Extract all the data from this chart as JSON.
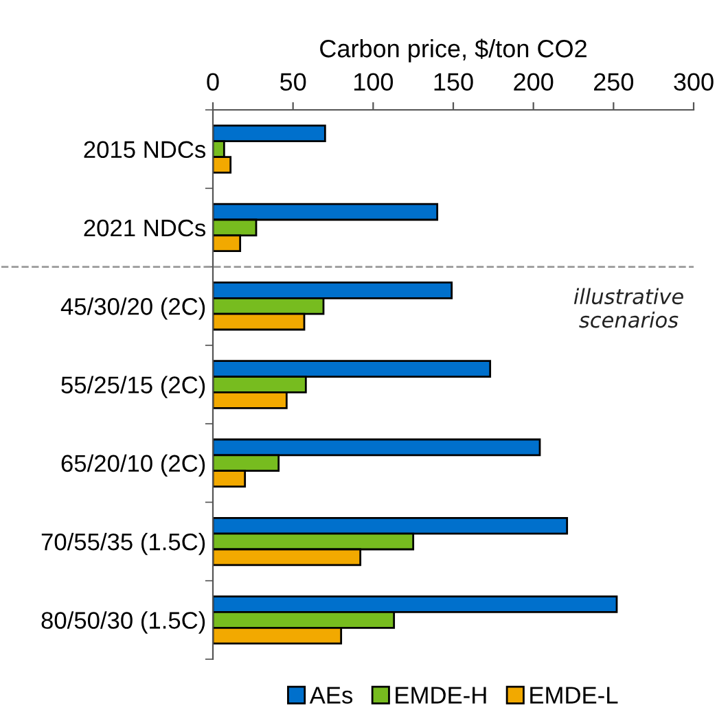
{
  "chart_data": {
    "type": "bar",
    "orientation": "horizontal",
    "xlabel": "Carbon price, $/ton CO2",
    "categories": [
      "2015 NDCs",
      "2021 NDCs",
      "45/30/20 (2C)",
      "55/25/15 (2C)",
      "65/20/10 (2C)",
      "70/55/35 (1.5C)",
      "80/50/30 (1.5C)"
    ],
    "series": [
      {
        "name": "AEs",
        "color": "#0070cc",
        "values": [
          70,
          140,
          149,
          173,
          204,
          221,
          252
        ]
      },
      {
        "name": "EMDE-H",
        "color": "#77bc1f",
        "values": [
          7,
          27,
          69,
          58,
          41,
          125,
          113
        ]
      },
      {
        "name": "EMDE-L",
        "color": "#f2a900",
        "values": [
          11,
          17,
          57,
          46,
          20,
          92,
          80
        ]
      }
    ],
    "xlim": [
      0,
      300
    ],
    "xticks": [
      0,
      50,
      100,
      150,
      200,
      250,
      300
    ],
    "annotations": [
      "illustrative scenarios"
    ],
    "grid": false,
    "legend": "bottom"
  }
}
